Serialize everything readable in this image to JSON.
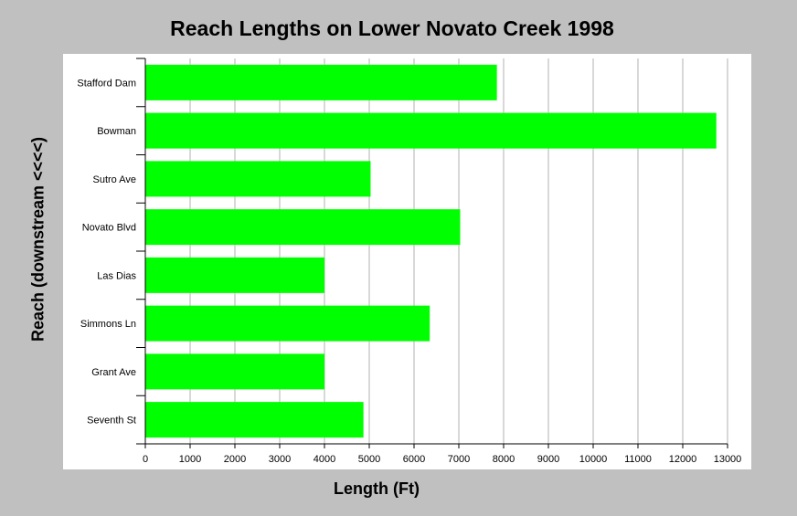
{
  "chart_data": {
    "type": "bar",
    "orientation": "horizontal",
    "title": "Reach Lengths on Lower Novato Creek 1998",
    "xlabel": "Length (Ft)",
    "ylabel": "Reach (downstream <<<<)",
    "categories": [
      "Stafford Dam",
      "Bowman",
      "Sutro Ave",
      "Novato Blvd",
      "Las Dias",
      "Simmons Ln",
      "Grant Ave",
      "Seventh St"
    ],
    "values": [
      7850,
      12750,
      5030,
      7030,
      4000,
      6350,
      4000,
      4870
    ],
    "xlim": [
      0,
      13000
    ],
    "xticks": [
      "0",
      "1000",
      "2000",
      "3000",
      "4000",
      "5000",
      "6000",
      "7000",
      "8000",
      "9000",
      "10000",
      "11000",
      "12000",
      "13000"
    ],
    "grid": "vertical",
    "legend": "none",
    "colors": {
      "bar": "#00ff00",
      "background": "#c0c0c0",
      "plot": "#ffffff",
      "grid": "#b0b0b0"
    }
  }
}
